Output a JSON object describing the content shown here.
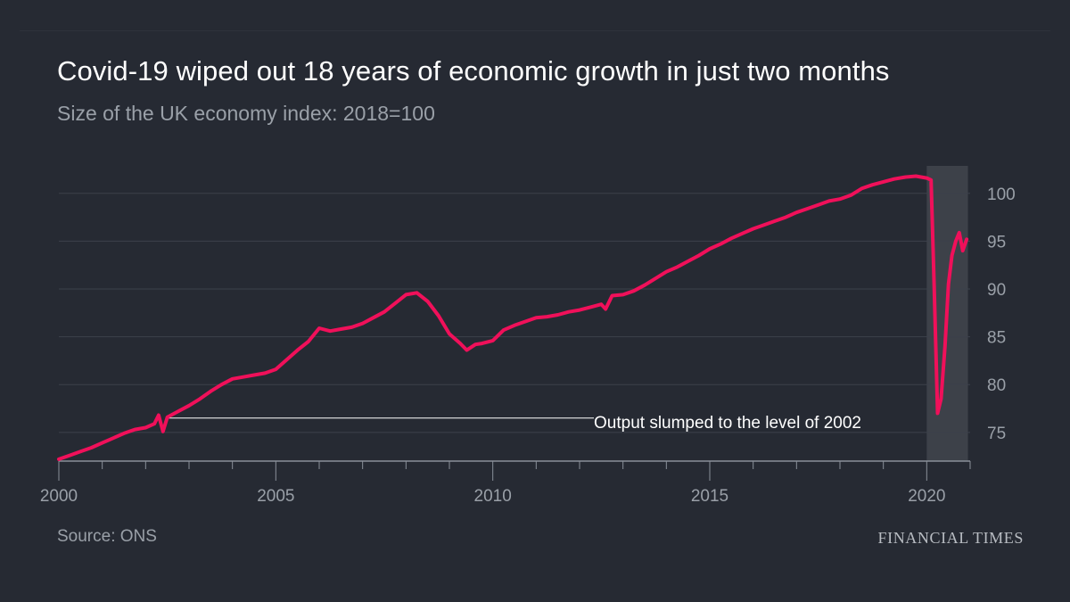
{
  "header": {
    "title": "Covid-19 wiped out 18 years of economic growth in just two months",
    "subtitle": "Size of the UK economy index: 2018=100"
  },
  "footer": {
    "source": "Source: ONS",
    "brand": "FINANCIAL TIMES"
  },
  "colors": {
    "background": "#262a33",
    "line": "#f0105a",
    "grid": "#3c414b",
    "axis": "#8a9099",
    "shade": "#3d4149",
    "annotation": "#ffffff"
  },
  "chart_data": {
    "type": "line",
    "title": "Covid-19 wiped out 18 years of economic growth in just two months",
    "subtitle": "Size of the UK economy index: 2018=100",
    "xlabel": "",
    "ylabel": "",
    "xlim": [
      2000,
      2021
    ],
    "ylim": [
      72,
      102.5
    ],
    "x_ticks": [
      2000,
      2005,
      2010,
      2015,
      2020
    ],
    "y_ticks": [
      75,
      80,
      85,
      90,
      95,
      100
    ],
    "y_axis_side": "right",
    "grid": "horizontal",
    "shaded_region": {
      "x_start": 2020.0,
      "x_end": 2020.95
    },
    "annotations": [
      {
        "text": "Output slumped to the level of 2002",
        "x": 2002.4,
        "y": 76.5
      }
    ],
    "series": [
      {
        "values": [
          [
            2000.0,
            72.2
          ],
          [
            2000.25,
            72.6
          ],
          [
            2000.5,
            73.0
          ],
          [
            2000.75,
            73.4
          ],
          [
            2001.0,
            73.9
          ],
          [
            2001.25,
            74.4
          ],
          [
            2001.5,
            74.9
          ],
          [
            2001.75,
            75.3
          ],
          [
            2002.0,
            75.5
          ],
          [
            2002.2,
            75.9
          ],
          [
            2002.3,
            76.8
          ],
          [
            2002.4,
            75.1
          ],
          [
            2002.5,
            76.6
          ],
          [
            2002.75,
            77.2
          ],
          [
            2003.0,
            77.8
          ],
          [
            2003.25,
            78.5
          ],
          [
            2003.5,
            79.3
          ],
          [
            2003.75,
            80.0
          ],
          [
            2004.0,
            80.6
          ],
          [
            2004.25,
            80.8
          ],
          [
            2004.5,
            81.0
          ],
          [
            2004.75,
            81.2
          ],
          [
            2005.0,
            81.6
          ],
          [
            2005.25,
            82.6
          ],
          [
            2005.5,
            83.6
          ],
          [
            2005.75,
            84.5
          ],
          [
            2006.0,
            85.9
          ],
          [
            2006.25,
            85.6
          ],
          [
            2006.5,
            85.8
          ],
          [
            2006.75,
            86.0
          ],
          [
            2007.0,
            86.4
          ],
          [
            2007.25,
            87.0
          ],
          [
            2007.5,
            87.6
          ],
          [
            2007.75,
            88.5
          ],
          [
            2008.0,
            89.4
          ],
          [
            2008.25,
            89.6
          ],
          [
            2008.5,
            88.7
          ],
          [
            2008.75,
            87.2
          ],
          [
            2009.0,
            85.3
          ],
          [
            2009.25,
            84.3
          ],
          [
            2009.4,
            83.6
          ],
          [
            2009.6,
            84.2
          ],
          [
            2009.75,
            84.3
          ],
          [
            2010.0,
            84.6
          ],
          [
            2010.25,
            85.7
          ],
          [
            2010.5,
            86.2
          ],
          [
            2010.75,
            86.6
          ],
          [
            2011.0,
            87.0
          ],
          [
            2011.25,
            87.1
          ],
          [
            2011.5,
            87.3
          ],
          [
            2011.75,
            87.6
          ],
          [
            2012.0,
            87.8
          ],
          [
            2012.25,
            88.1
          ],
          [
            2012.5,
            88.4
          ],
          [
            2012.6,
            87.9
          ],
          [
            2012.75,
            89.3
          ],
          [
            2013.0,
            89.4
          ],
          [
            2013.25,
            89.8
          ],
          [
            2013.5,
            90.4
          ],
          [
            2013.75,
            91.1
          ],
          [
            2014.0,
            91.8
          ],
          [
            2014.25,
            92.3
          ],
          [
            2014.5,
            92.9
          ],
          [
            2014.75,
            93.5
          ],
          [
            2015.0,
            94.2
          ],
          [
            2015.25,
            94.7
          ],
          [
            2015.5,
            95.3
          ],
          [
            2015.75,
            95.8
          ],
          [
            2016.0,
            96.3
          ],
          [
            2016.25,
            96.7
          ],
          [
            2016.5,
            97.1
          ],
          [
            2016.75,
            97.5
          ],
          [
            2017.0,
            98.0
          ],
          [
            2017.25,
            98.4
          ],
          [
            2017.5,
            98.8
          ],
          [
            2017.75,
            99.2
          ],
          [
            2018.0,
            99.4
          ],
          [
            2018.25,
            99.8
          ],
          [
            2018.5,
            100.5
          ],
          [
            2018.75,
            100.9
          ],
          [
            2019.0,
            101.2
          ],
          [
            2019.25,
            101.5
          ],
          [
            2019.5,
            101.7
          ],
          [
            2019.75,
            101.8
          ],
          [
            2020.0,
            101.6
          ],
          [
            2020.1,
            101.4
          ],
          [
            2020.17,
            90.5
          ],
          [
            2020.25,
            77.0
          ],
          [
            2020.33,
            78.5
          ],
          [
            2020.42,
            84.0
          ],
          [
            2020.5,
            90.5
          ],
          [
            2020.58,
            93.5
          ],
          [
            2020.67,
            95.0
          ],
          [
            2020.75,
            95.9
          ],
          [
            2020.83,
            94.0
          ],
          [
            2020.92,
            95.2
          ]
        ]
      }
    ]
  }
}
